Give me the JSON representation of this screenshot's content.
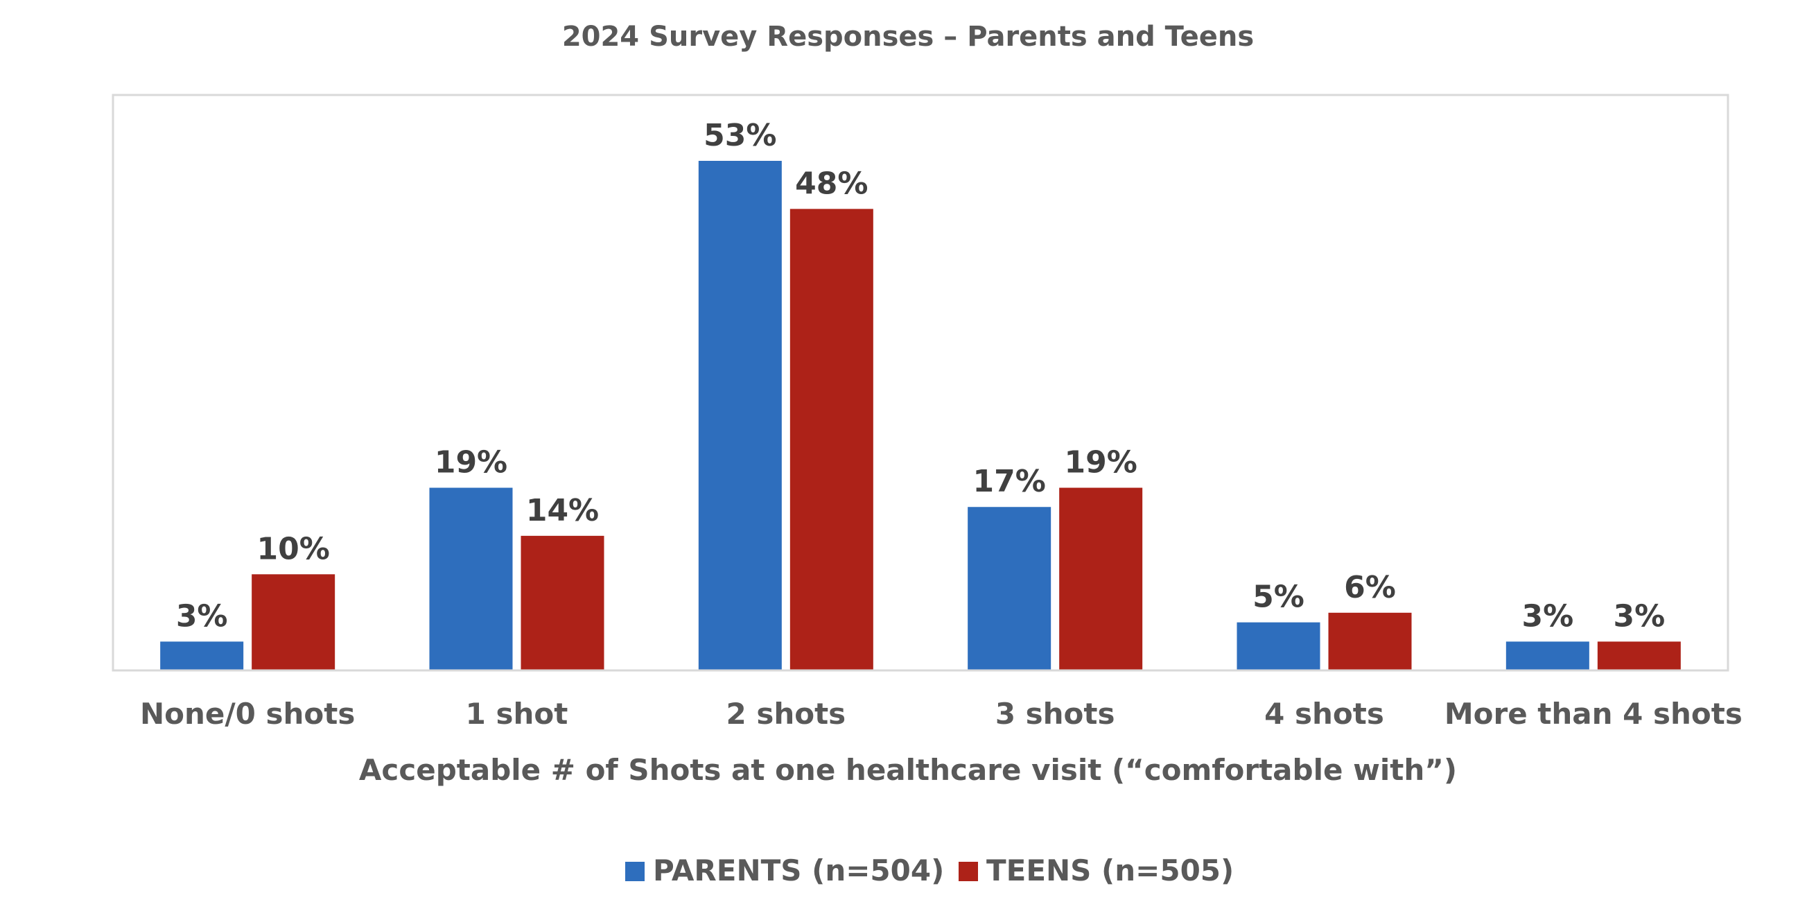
{
  "chart_data": {
    "type": "bar",
    "title": "2024 Survey Responses – Parents and Teens",
    "xlabel": "Acceptable # of Shots at one healthcare visit (“comfortable with”)",
    "ylabel": "",
    "categories": [
      "None/0 shots",
      "1 shot",
      "2 shots",
      "3 shots",
      "4 shots",
      "More than 4 shots"
    ],
    "series": [
      {
        "name": "PARENTS (n=504)",
        "color": "#2E6EBD",
        "values": [
          3,
          19,
          53,
          17,
          5,
          3
        ],
        "labels": [
          "3%",
          "19%",
          "53%",
          "17%",
          "5%",
          "3%"
        ]
      },
      {
        "name": "TEENS (n=505)",
        "color": "#AD2218",
        "values": [
          10,
          14,
          48,
          19,
          6,
          3
        ],
        "labels": [
          "10%",
          "14%",
          "48%",
          "19%",
          "6%",
          "3%"
        ]
      }
    ],
    "ylim": [
      0,
      53
    ],
    "grid": false,
    "legend_position": "bottom",
    "axis_color": "#D9D9D9"
  }
}
